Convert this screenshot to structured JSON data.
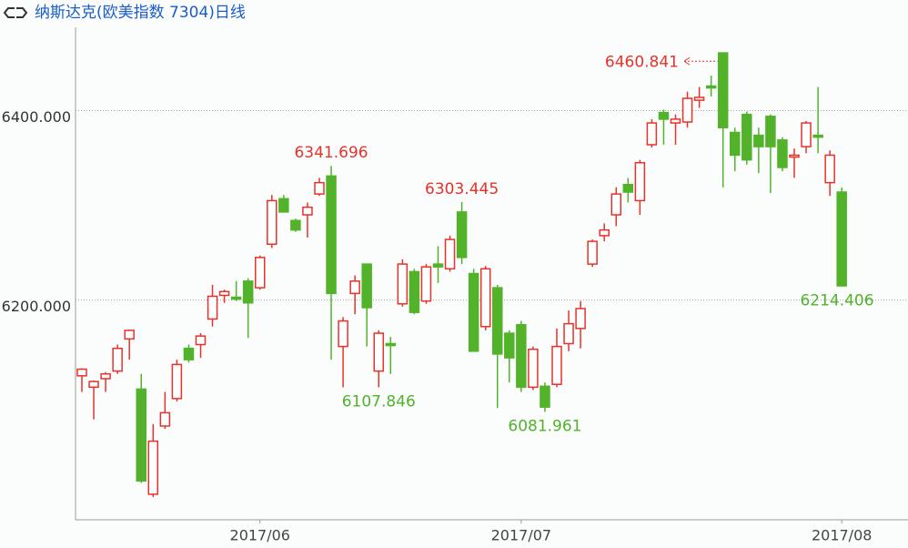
{
  "chart_data": {
    "type": "candlestick",
    "title": "纳斯达克(欧美指数 7304)日线",
    "categories": [
      null,
      null,
      null,
      null,
      null,
      null,
      null,
      null,
      null,
      null,
      null,
      null,
      null,
      null,
      null,
      "2017/06",
      null,
      null,
      null,
      null,
      null,
      null,
      null,
      null,
      null,
      null,
      null,
      null,
      null,
      null,
      null,
      null,
      null,
      null,
      null,
      null,
      null,
      "2017/07",
      null,
      null,
      null,
      null,
      null,
      null,
      null,
      null,
      null,
      null,
      null,
      null,
      null,
      null,
      null,
      null,
      null,
      null,
      null,
      null,
      null,
      null,
      null,
      null,
      null,
      null,
      "2017/08"
    ],
    "open": [
      6120,
      6108,
      6117,
      6125,
      6159,
      6106,
      5995,
      6067,
      6096,
      6149,
      6153,
      6180,
      6205,
      6203,
      6220,
      6213,
      6259,
      6307,
      6284,
      6290,
      6312,
      6331,
      6151,
      6207,
      6238,
      6125,
      6154,
      6196,
      6230,
      6199,
      6238,
      6233,
      6293,
      6228,
      6172,
      6213,
      6165,
      6174,
      6108,
      6109,
      6111,
      6154,
      6170,
      6238,
      6268,
      6290,
      6322,
      6305,
      6364,
      6398,
      6387,
      6388,
      6411,
      6426,
      6461,
      6377,
      6396,
      6374,
      6394,
      6369,
      6351,
      6362,
      6374,
      6324,
      6314
    ],
    "high": [
      6128,
      6115,
      6124,
      6153,
      6169,
      6122,
      6069,
      6103,
      6137,
      6153,
      6165,
      6216,
      6211,
      6220,
      6223,
      6247,
      6311,
      6311,
      6286,
      6303,
      6329,
      6341.696,
      6182,
      6226,
      6238,
      6168,
      6161,
      6243,
      6233,
      6238,
      6257,
      6268,
      6303.445,
      6233,
      6236,
      6216,
      6168,
      6178,
      6151,
      6113,
      6170,
      6189,
      6199,
      6264,
      6281,
      6319,
      6329,
      6348,
      6391,
      6401,
      6396,
      6420,
      6425,
      6437,
      6460.841,
      6382,
      6399,
      6382,
      6396,
      6372,
      6360,
      6389,
      6425,
      6358,
      6319
    ],
    "low": [
      6103,
      6074,
      6103,
      6122,
      6137,
      6007,
      5992,
      6064,
      6093,
      6134,
      6139,
      6172,
      6197,
      6199,
      6160,
      6211,
      6255,
      6293,
      6272,
      6266,
      6310,
      6137,
      6108,
      6185,
      6151,
      6107.846,
      6122,
      6193,
      6185,
      6196,
      6218,
      6230,
      6238,
      6146,
      6168,
      6086,
      6113,
      6103,
      6105,
      6081.961,
      6108,
      6146,
      6149,
      6235,
      6262,
      6278,
      6303,
      6290,
      6361,
      6364,
      6364,
      6382,
      6403,
      6415,
      6319,
      6336,
      6343,
      6334,
      6313,
      6336,
      6329,
      6355,
      6355,
      6310,
      6214.406
    ],
    "close": [
      6127,
      6114,
      6122,
      6149,
      6168,
      6009,
      6051,
      6081,
      6132,
      6137,
      6162,
      6204,
      6209,
      6201,
      6197,
      6245,
      6305,
      6293,
      6274,
      6298,
      6324,
      6207,
      6178,
      6220,
      6192,
      6165,
      6152,
      6238,
      6187,
      6235,
      6235,
      6264,
      6245,
      6146,
      6233,
      6143,
      6139,
      6108,
      6148,
      6087,
      6151,
      6175,
      6191,
      6262,
      6274,
      6312,
      6314,
      6345,
      6387,
      6391,
      6391,
      6413,
      6414,
      6424,
      6382,
      6353,
      6348,
      6362,
      6362,
      6340,
      6353,
      6387,
      6372,
      6353,
      6215
    ],
    "up_color": "#e8312a",
    "down_color": "#52b22a",
    "ylim": [
      5968,
      6488
    ],
    "yticks": [
      {
        "value": 6200,
        "label": "6200.000"
      },
      {
        "value": 6400,
        "label": "6400.000"
      }
    ],
    "grid": true,
    "annotations": [
      {
        "label": "6460.841",
        "value": 6460.841,
        "color": "#e8312a"
      },
      {
        "label": "6341.696",
        "value": 6341.696,
        "color": "#e8312a"
      },
      {
        "label": "6303.445",
        "value": 6303.445,
        "color": "#e8312a"
      },
      {
        "label": "6107.846",
        "value": 6107.846,
        "color": "#52b22a"
      },
      {
        "label": "6081.961",
        "value": 6081.961,
        "color": "#52b22a"
      },
      {
        "label": "6214.406",
        "value": 6214.406,
        "color": "#52b22a"
      }
    ]
  }
}
